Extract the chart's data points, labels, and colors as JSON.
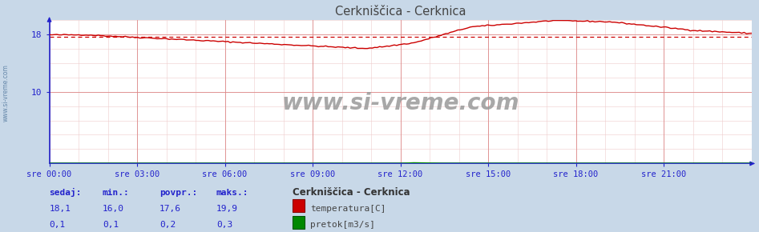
{
  "title": "Cerkniščica - Cerknica",
  "bg_color": "#c8d8e8",
  "plot_bg_color": "#ffffff",
  "grid_color_major": "#dd8888",
  "grid_color_minor": "#eecccc",
  "x_tick_labels": [
    "sre 00:00",
    "sre 03:00",
    "sre 06:00",
    "sre 09:00",
    "sre 12:00",
    "sre 15:00",
    "sre 18:00",
    "sre 21:00"
  ],
  "y_ticks": [
    10,
    18
  ],
  "y_min": 0,
  "y_max": 20,
  "temp_color": "#cc0000",
  "flow_color": "#008800",
  "avg_line_color": "#cc0000",
  "avg_value": 17.6,
  "temp_min": 16.0,
  "temp_max": 19.9,
  "temp_avg": 17.6,
  "temp_curr": 18.1,
  "flow_min": 0.1,
  "flow_max": 0.3,
  "flow_avg": 0.2,
  "flow_curr": 0.1,
  "watermark": "www.si-vreme.com",
  "legend_title": "Cerkniščica - Cerknica",
  "label_temp": "temperatura[C]",
  "label_flow": "pretok[m3/s]",
  "header_sedaj": "sedaj:",
  "header_min": "min.:",
  "header_povpr": "povpr.:",
  "header_maks": "maks.:",
  "n_points": 288,
  "axis_color": "#2222cc",
  "tick_color": "#2222cc",
  "text_color": "#2222cc",
  "title_color": "#444444",
  "label_color": "#444444"
}
